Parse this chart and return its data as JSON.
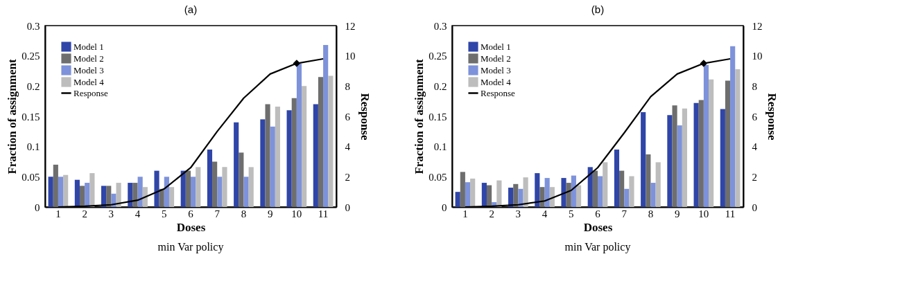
{
  "chart_data": [
    {
      "type": "bar",
      "title": "(a)",
      "xlabel": "Doses",
      "ylabel": "Fraction of assignment",
      "y2label": "Response",
      "annotations": [
        "min Var policy"
      ],
      "categories": [
        "1",
        "2",
        "3",
        "4",
        "5",
        "6",
        "7",
        "8",
        "9",
        "10",
        "11"
      ],
      "series": [
        {
          "name": "Model 1",
          "color": "#2f45a8",
          "values": [
            0.05,
            0.045,
            0.035,
            0.04,
            0.06,
            0.06,
            0.095,
            0.14,
            0.145,
            0.16,
            0.17
          ]
        },
        {
          "name": "Model 2",
          "color": "#6e6e6e",
          "values": [
            0.07,
            0.035,
            0.035,
            0.04,
            0.03,
            0.06,
            0.075,
            0.09,
            0.17,
            0.18,
            0.215
          ]
        },
        {
          "name": "Model 3",
          "color": "#7d92da",
          "values": [
            0.05,
            0.04,
            0.022,
            0.05,
            0.05,
            0.05,
            0.05,
            0.05,
            0.133,
            0.237,
            0.268
          ]
        },
        {
          "name": "Model 4",
          "color": "#bdbdbd",
          "values": [
            0.053,
            0.056,
            0.04,
            0.033,
            0.033,
            0.066,
            0.066,
            0.066,
            0.166,
            0.2,
            0.217
          ]
        },
        {
          "name": "Response",
          "type": "line",
          "axis": "y2",
          "color": "#000000",
          "values": [
            0,
            0.05,
            0.15,
            0.45,
            1.2,
            2.6,
            5,
            7.2,
            8.8,
            9.5,
            9.8
          ]
        },
        {
          "type": "scatter",
          "axis": "y2",
          "color": "#000000",
          "marker": "diamond",
          "x": [
            "10"
          ],
          "values": [
            9.5
          ]
        }
      ],
      "ylim": [
        0,
        0.3
      ],
      "yticks": [
        0,
        0.05,
        0.1,
        0.15,
        0.2,
        0.25,
        0.3
      ],
      "y2lim": [
        0,
        12
      ],
      "y2ticks": [
        0,
        2,
        4,
        6,
        8,
        10,
        12
      ],
      "legend": "top left"
    },
    {
      "type": "bar",
      "title": "(b)",
      "xlabel": "Doses",
      "ylabel": "Fraction of assignment",
      "y2label": "Response",
      "annotations": [
        "min Var policy"
      ],
      "categories": [
        "1",
        "2",
        "3",
        "4",
        "5",
        "6",
        "7",
        "8",
        "9",
        "10",
        "11"
      ],
      "series": [
        {
          "name": "Model 1",
          "color": "#2f45a8",
          "values": [
            0.025,
            0.04,
            0.032,
            0.056,
            0.048,
            0.066,
            0.095,
            0.157,
            0.152,
            0.172,
            0.162
          ]
        },
        {
          "name": "Model 2",
          "color": "#6e6e6e",
          "values": [
            0.058,
            0.036,
            0.038,
            0.033,
            0.04,
            0.06,
            0.06,
            0.087,
            0.168,
            0.177,
            0.209
          ]
        },
        {
          "name": "Model 3",
          "color": "#7d92da",
          "values": [
            0.041,
            0.008,
            0.03,
            0.048,
            0.052,
            0.051,
            0.03,
            0.04,
            0.135,
            0.235,
            0.266
          ]
        },
        {
          "name": "Model 4",
          "color": "#bdbdbd",
          "values": [
            0.047,
            0.044,
            0.049,
            0.033,
            0.036,
            0.074,
            0.051,
            0.074,
            0.163,
            0.211,
            0.228
          ]
        },
        {
          "name": "Response",
          "type": "line",
          "axis": "y2",
          "color": "#000000",
          "values": [
            0,
            0.05,
            0.15,
            0.4,
            1.1,
            2.6,
            4.9,
            7.3,
            8.8,
            9.5,
            9.8
          ]
        },
        {
          "type": "scatter",
          "axis": "y2",
          "color": "#000000",
          "marker": "diamond",
          "x": [
            "10"
          ],
          "values": [
            9.5
          ]
        }
      ],
      "ylim": [
        0,
        0.3
      ],
      "yticks": [
        0,
        0.05,
        0.1,
        0.15,
        0.2,
        0.25,
        0.3
      ],
      "y2lim": [
        0,
        12
      ],
      "y2ticks": [
        0,
        2,
        4,
        6,
        8,
        10,
        12
      ],
      "legend": "top left"
    }
  ]
}
